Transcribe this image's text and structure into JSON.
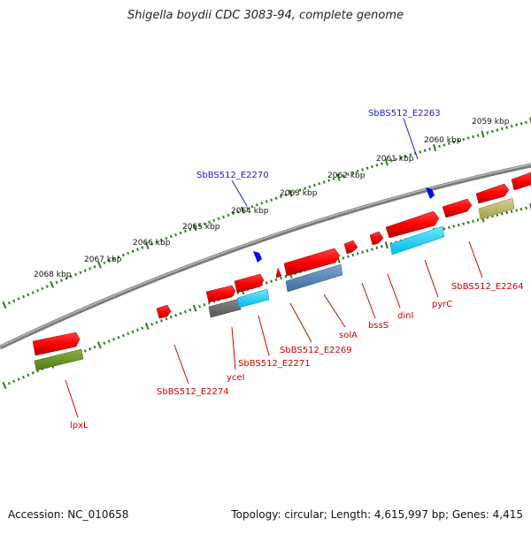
{
  "title": "Shigella boydii CDC 3083-94, complete genome",
  "footer": {
    "accession": "Accession: NC_010658",
    "summary": "Topology: circular; Length: 4,615,997 bp; Genes: 4,415"
  },
  "colors": {
    "backbone": "#808080",
    "ruler": "#2e7d1e",
    "gene_forward": "#ff0000",
    "rna_label": "#1a1acc",
    "gene_label": "#cc0000",
    "blue_mark": "#0000ee"
  },
  "kbp_ticks": [
    {
      "label": "2068 kbp"
    },
    {
      "label": "2067 kbp"
    },
    {
      "label": "2066 kbp"
    },
    {
      "label": "2065 kbp"
    },
    {
      "label": "2064 kbp"
    },
    {
      "label": "2063 kbp"
    },
    {
      "label": "2062 kbp"
    },
    {
      "label": "2061 kbp"
    },
    {
      "label": "2060 kbp"
    },
    {
      "label": "2059 kbp"
    }
  ],
  "top_labels": [
    {
      "label": "SbBS512_E2270"
    },
    {
      "label": "SbBS512_E2263"
    }
  ],
  "bottom_labels": [
    {
      "label": "lpxL"
    },
    {
      "label": "SbBS512_E2274"
    },
    {
      "label": "yceI"
    },
    {
      "label": "SbBS512_E2271"
    },
    {
      "label": "SbBS512_E2269"
    },
    {
      "label": "solA"
    },
    {
      "label": "bssS"
    },
    {
      "label": "dinI"
    },
    {
      "label": "pyrC"
    },
    {
      "label": "SbBS512_E2264"
    }
  ]
}
